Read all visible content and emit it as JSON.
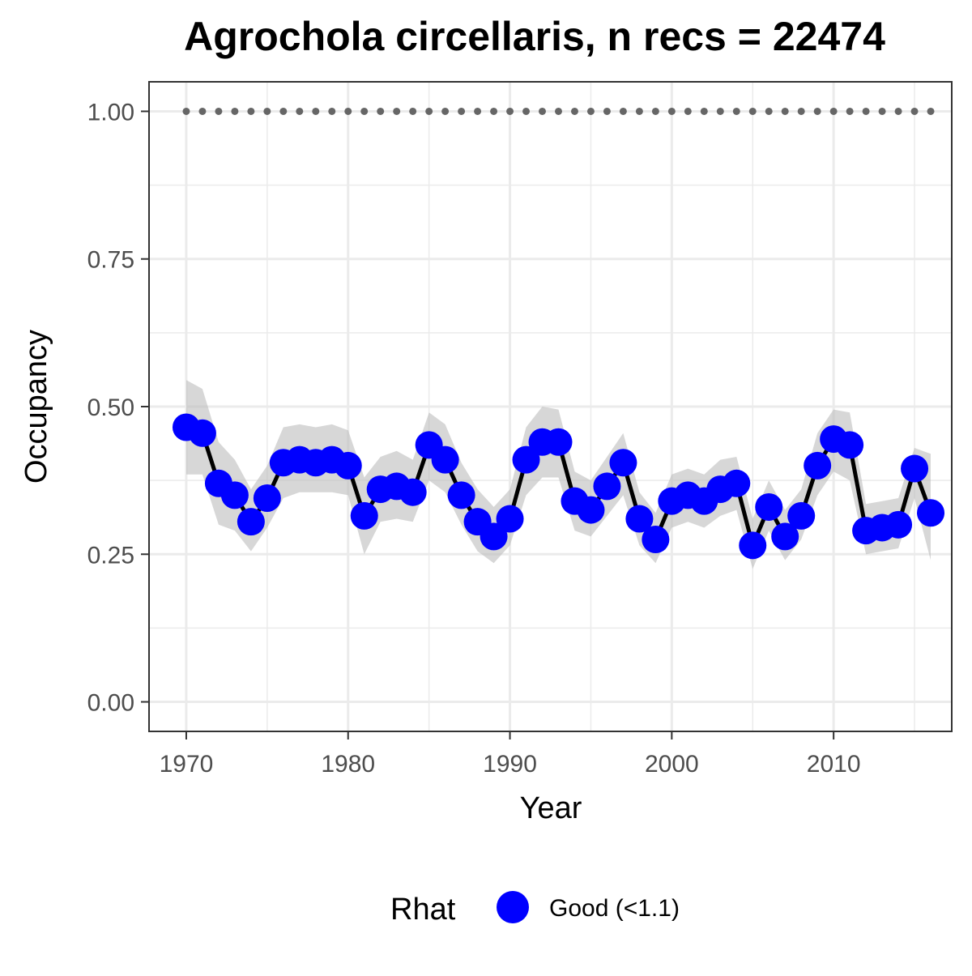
{
  "chart_data": {
    "type": "line",
    "title": "Agrochola circellaris, n recs = 22474",
    "xlabel": "Year",
    "ylabel": "Occupancy",
    "xlim": [
      1967.7,
      2017.3
    ],
    "ylim": [
      -0.05,
      1.05
    ],
    "x_ticks": [
      1970,
      1980,
      1990,
      2000,
      2010
    ],
    "x_tick_labels": [
      "1970",
      "1980",
      "1990",
      "2000",
      "2010"
    ],
    "x_minor_ticks": [
      1975,
      1985,
      1995,
      2005,
      2015
    ],
    "y_ticks": [
      0,
      0.25,
      0.5,
      0.75,
      1.0
    ],
    "y_tick_labels": [
      "0.00",
      "0.25",
      "0.50",
      "0.75",
      "1.00"
    ],
    "y_minor_ticks": [
      0.125,
      0.375,
      0.625,
      0.875
    ],
    "grid": true,
    "legend": {
      "title": "Rhat",
      "position": "bottom",
      "entries": [
        {
          "label": "Good (<1.1)",
          "color": "#0000ff"
        }
      ]
    },
    "colors": {
      "points": "#0000ff",
      "line": "#000000",
      "band": "#bdbdbd",
      "reference": "#666666",
      "grid": "#ebebeb",
      "panel_border": "#333333"
    },
    "series": [
      {
        "name": "Good (<1.1)",
        "x": [
          1970,
          1971,
          1972,
          1973,
          1974,
          1975,
          1976,
          1977,
          1978,
          1979,
          1980,
          1981,
          1982,
          1983,
          1984,
          1985,
          1986,
          1987,
          1988,
          1989,
          1990,
          1991,
          1992,
          1993,
          1994,
          1995,
          1996,
          1997,
          1998,
          1999,
          2000,
          2001,
          2002,
          2003,
          2004,
          2005,
          2006,
          2007,
          2008,
          2009,
          2010,
          2011,
          2012,
          2013,
          2014,
          2015,
          2016
        ],
        "y": [
          0.465,
          0.455,
          0.37,
          0.35,
          0.305,
          0.345,
          0.405,
          0.41,
          0.405,
          0.41,
          0.4,
          0.315,
          0.36,
          0.365,
          0.355,
          0.435,
          0.41,
          0.35,
          0.305,
          0.28,
          0.31,
          0.41,
          0.44,
          0.44,
          0.34,
          0.325,
          0.365,
          0.405,
          0.31,
          0.275,
          0.34,
          0.35,
          0.34,
          0.36,
          0.37,
          0.265,
          0.33,
          0.28,
          0.315,
          0.4,
          0.445,
          0.435,
          0.29,
          0.295,
          0.3,
          0.395,
          0.32
        ],
        "lower": [
          0.385,
          0.385,
          0.3,
          0.29,
          0.255,
          0.295,
          0.345,
          0.355,
          0.355,
          0.355,
          0.35,
          0.25,
          0.305,
          0.31,
          0.305,
          0.375,
          0.355,
          0.3,
          0.255,
          0.235,
          0.265,
          0.35,
          0.38,
          0.38,
          0.29,
          0.28,
          0.315,
          0.35,
          0.265,
          0.235,
          0.295,
          0.305,
          0.295,
          0.315,
          0.325,
          0.225,
          0.29,
          0.24,
          0.275,
          0.35,
          0.39,
          0.375,
          0.25,
          0.255,
          0.26,
          0.345,
          0.24
        ],
        "upper": [
          0.545,
          0.53,
          0.44,
          0.41,
          0.36,
          0.4,
          0.465,
          0.47,
          0.465,
          0.47,
          0.46,
          0.38,
          0.415,
          0.425,
          0.41,
          0.49,
          0.47,
          0.405,
          0.36,
          0.33,
          0.36,
          0.465,
          0.5,
          0.495,
          0.39,
          0.375,
          0.415,
          0.455,
          0.355,
          0.32,
          0.385,
          0.395,
          0.385,
          0.41,
          0.415,
          0.31,
          0.375,
          0.325,
          0.36,
          0.455,
          0.495,
          0.49,
          0.335,
          0.34,
          0.345,
          0.43,
          0.42
        ]
      }
    ],
    "reference_line": {
      "y": 1.0,
      "x": [
        1970,
        1971,
        1972,
        1973,
        1974,
        1975,
        1976,
        1977,
        1978,
        1979,
        1980,
        1981,
        1982,
        1983,
        1984,
        1985,
        1986,
        1987,
        1988,
        1989,
        1990,
        1991,
        1992,
        1993,
        1994,
        1995,
        1996,
        1997,
        1998,
        1999,
        2000,
        2001,
        2002,
        2003,
        2004,
        2005,
        2006,
        2007,
        2008,
        2009,
        2010,
        2011,
        2012,
        2013,
        2014,
        2015,
        2016
      ]
    }
  }
}
